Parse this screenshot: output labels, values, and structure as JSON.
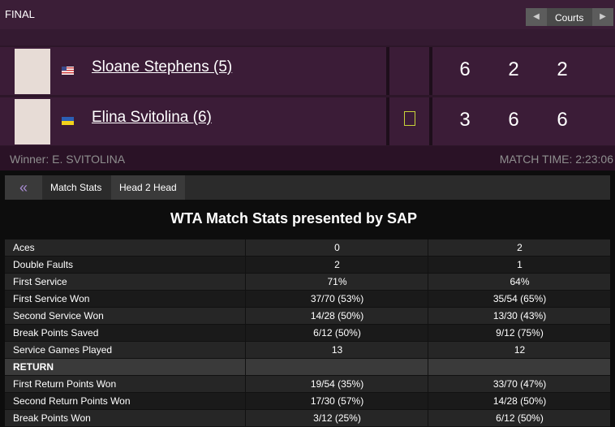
{
  "header": {
    "round": "FINAL",
    "courts": "Courts"
  },
  "players": [
    {
      "name": "Sloane Stephens (5)",
      "scores": [
        6,
        2,
        2
      ]
    },
    {
      "name": "Elina Svitolina (6)",
      "scores": [
        3,
        6,
        6
      ]
    }
  ],
  "footer": {
    "winner": "Winner: E. SVITOLINA",
    "match_time": "MATCH TIME: 2:23:06"
  },
  "tabs": {
    "back": "«",
    "match_stats": "Match Stats",
    "head2head": "Head 2 Head"
  },
  "stats": {
    "title": "WTA Match Stats presented by SAP",
    "rows": [
      [
        "Aces",
        "0",
        "2"
      ],
      [
        "Double Faults",
        "2",
        "1"
      ],
      [
        "First Service",
        "71%",
        "64%"
      ],
      [
        "First Service Won",
        "37/70 (53%)",
        "35/54 (65%)"
      ],
      [
        "Second Service Won",
        "14/28 (50%)",
        "13/30 (43%)"
      ],
      [
        "Break Points Saved",
        "6/12 (50%)",
        "9/12 (75%)"
      ],
      [
        "Service Games Played",
        "13",
        "12"
      ],
      [
        "RETURN"
      ],
      [
        "First Return Points Won",
        "19/54 (35%)",
        "33/70 (47%)"
      ],
      [
        "Second Return Points Won",
        "17/30 (57%)",
        "14/28 (50%)"
      ],
      [
        "Break Points Won",
        "3/12 (25%)",
        "6/12 (50%)"
      ]
    ]
  }
}
